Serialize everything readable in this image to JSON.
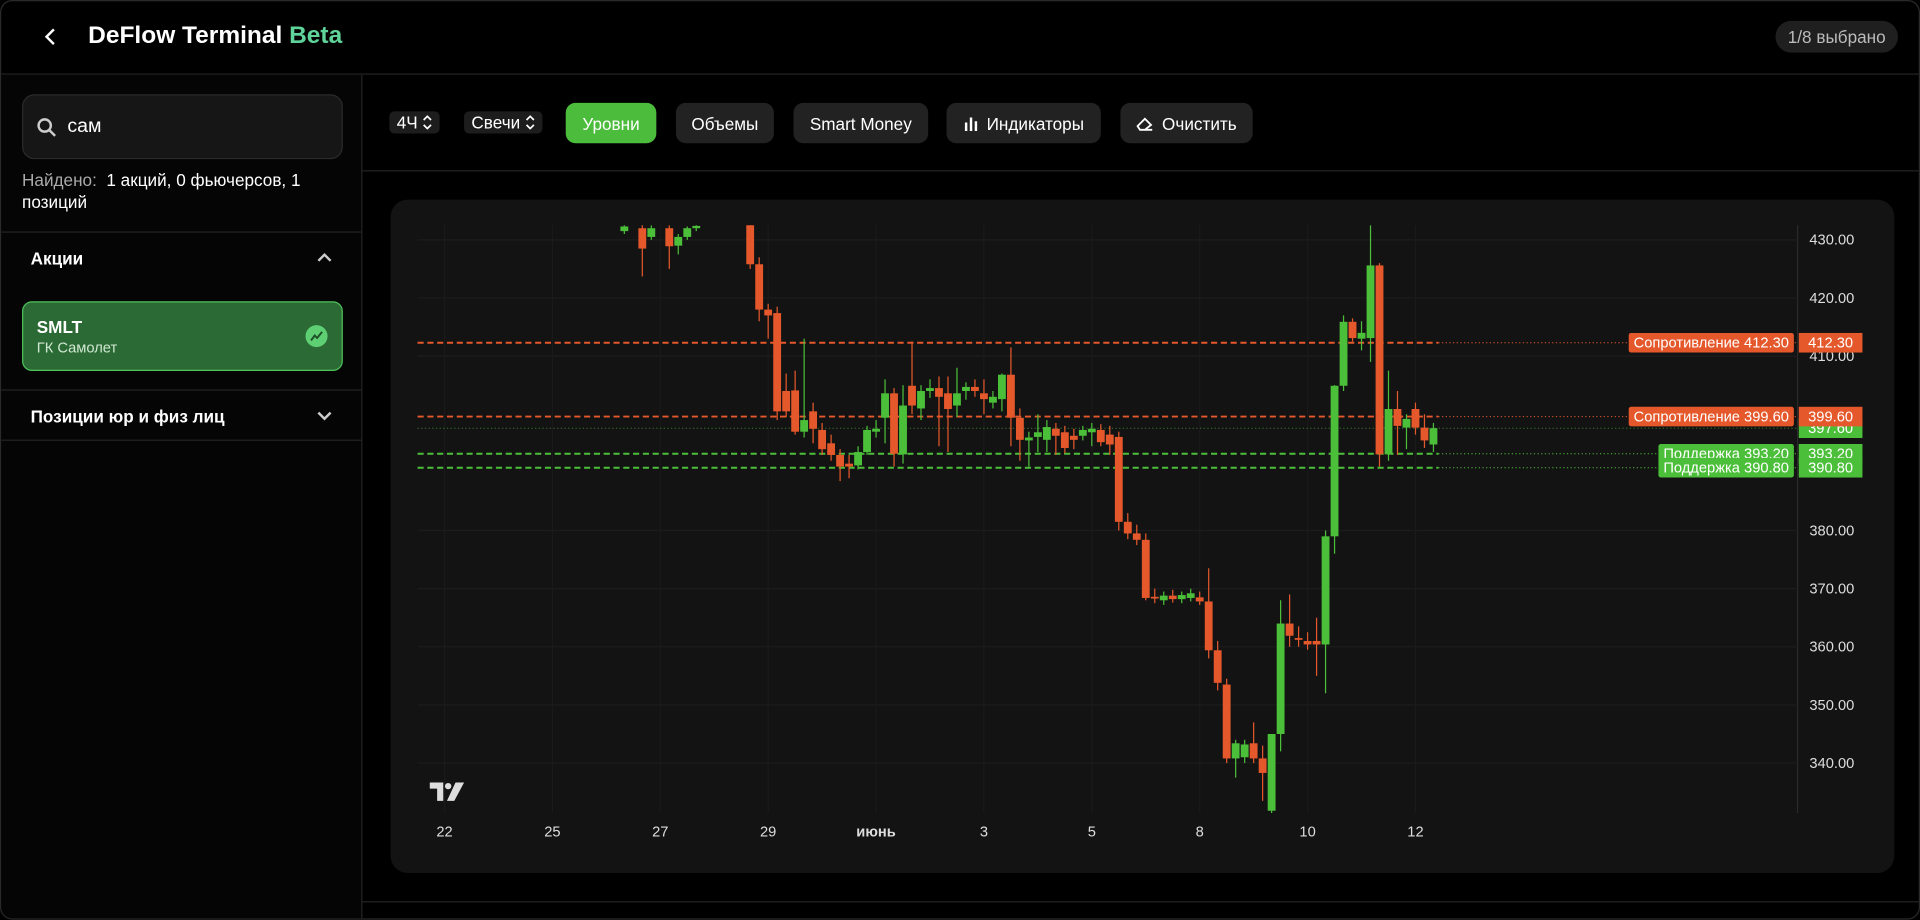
{
  "header": {
    "title": "DeFlow Terminal",
    "badge": "Beta",
    "selection": "1/8 выбрано"
  },
  "sidebar": {
    "search": "сам",
    "found_label": "Найдено:",
    "found_text": "1 акций, 0 фьючерсов, 1 позиций",
    "sections": [
      {
        "title": "Акции",
        "items": [
          {
            "ticker": "SMLT",
            "name": "ГК Самолет"
          }
        ]
      },
      {
        "title": "Позиции юр и физ лиц"
      }
    ]
  },
  "toolbar": {
    "timeframe": "4Ч",
    "chart_style": "Свечи",
    "buttons": [
      {
        "label": "Уровни",
        "active": true
      },
      {
        "label": "Объемы",
        "active": false
      },
      {
        "label": "Smart Money",
        "active": false
      },
      {
        "label": "Индикаторы",
        "active": false
      },
      {
        "label": "Очистить",
        "active": false
      }
    ]
  },
  "chart_data": {
    "type": "candlestick",
    "up_color": "#4cbf3a",
    "down_color": "#e5582b",
    "grid": true,
    "xlim": [
      -3,
      150.5
    ],
    "ylim": [
      331.4,
      432.5
    ],
    "xticks": [
      {
        "value": 0,
        "label": "22"
      },
      {
        "value": 12,
        "label": "25"
      },
      {
        "value": 24,
        "label": "27"
      },
      {
        "value": 36,
        "label": "29"
      },
      {
        "value": 48,
        "label": "июнь"
      },
      {
        "value": 60,
        "label": "3"
      },
      {
        "value": 72,
        "label": "5"
      },
      {
        "value": 84,
        "label": "8"
      },
      {
        "value": 96,
        "label": "10"
      },
      {
        "value": 108,
        "label": "12"
      }
    ],
    "yticks": [
      {
        "value": 430,
        "label": "430.00"
      },
      {
        "value": 420,
        "label": "420.00"
      },
      {
        "value": 410,
        "label": "410.00"
      },
      {
        "value": 380,
        "label": "380.00"
      },
      {
        "value": 370,
        "label": "370.00"
      },
      {
        "value": 360,
        "label": "360.00"
      },
      {
        "value": 350,
        "label": "350.00"
      },
      {
        "value": 340,
        "label": "340.00"
      }
    ],
    "x": [
      20,
      22,
      23,
      25,
      26,
      27,
      28,
      34,
      35,
      36,
      37,
      38,
      39,
      40,
      41,
      42,
      43,
      44,
      45,
      46,
      47,
      48,
      49,
      50,
      51,
      52,
      53,
      54,
      55,
      56,
      57,
      58,
      59,
      60,
      61,
      62,
      63,
      64,
      65,
      66,
      67,
      68,
      69,
      70,
      71,
      72,
      73,
      74,
      75,
      76,
      77,
      78,
      79,
      80,
      81,
      82,
      83,
      84,
      85,
      86,
      87,
      88,
      89,
      90,
      91,
      92,
      93,
      94,
      95,
      96,
      97,
      98,
      99,
      100,
      101,
      102,
      103,
      104,
      105,
      106,
      107,
      108,
      109,
      110
    ],
    "open": [
      431.5,
      432,
      430.5,
      432,
      429,
      430.5,
      432,
      433,
      425.8,
      418,
      417.4,
      404,
      404.1,
      397,
      400.5,
      397.3,
      395,
      393,
      391.5,
      391.2,
      393.5,
      397,
      399.4,
      403.6,
      393.1,
      404.9,
      401,
      404,
      404.5,
      403.6,
      401.5,
      404,
      404.7,
      403.6,
      402,
      402.6,
      406.8,
      399.4,
      395.5,
      396.1,
      395.6,
      397.5,
      396.9,
      396.3,
      396.3,
      396.9,
      397.3,
      396.5,
      396.1,
      381.5,
      379.5,
      378.4,
      368.6,
      368,
      368.8,
      368.2,
      368.4,
      368.5,
      367.8,
      359.4,
      353.5,
      340.8,
      341,
      343.4,
      340.8,
      331.8,
      345,
      364,
      361.5,
      361,
      361,
      360.4,
      379,
      404.9,
      415.9,
      413,
      413.1,
      425.6,
      393.1,
      400.9,
      397.7,
      400.9,
      397.7,
      394.8
    ],
    "high": [
      432.5,
      433,
      432.5,
      432.5,
      431,
      432.3,
      432.6,
      434,
      427,
      419,
      418.5,
      407,
      407.5,
      413,
      402,
      398.5,
      396.5,
      394,
      393,
      394.5,
      398,
      399,
      406,
      404.5,
      405,
      412.5,
      405,
      406,
      406.5,
      406.5,
      408,
      405.5,
      406,
      406,
      404,
      407,
      411.5,
      401,
      397,
      400,
      399,
      398.5,
      398,
      397.5,
      398,
      398.5,
      398.3,
      398,
      397,
      383,
      381,
      379.5,
      370,
      369.5,
      369.8,
      369.5,
      370,
      369.5,
      373.5,
      361,
      354.5,
      344,
      344,
      347,
      343,
      345,
      368,
      369,
      363.5,
      362.5,
      365,
      380,
      405,
      417,
      416.5,
      416,
      432.5,
      426,
      407.5,
      404,
      400,
      402,
      400,
      398.5
    ],
    "low": [
      431,
      423.7,
      430,
      425,
      427.5,
      430,
      431.5,
      425,
      416,
      413,
      399,
      399.5,
      396.5,
      396,
      395,
      393,
      392,
      388.5,
      389,
      390.5,
      393,
      396,
      395,
      391,
      391.5,
      400,
      399,
      402.8,
      394.5,
      393.5,
      399.5,
      402.5,
      403,
      400,
      401,
      400.5,
      394.5,
      392,
      391,
      393.5,
      393.5,
      393,
      393.3,
      394,
      395.5,
      394.5,
      394.5,
      393,
      380,
      378.5,
      377.5,
      368,
      367.5,
      367.2,
      367.6,
      367.5,
      367.8,
      367.2,
      358,
      352.5,
      340,
      337.5,
      340,
      340,
      333.5,
      331.4,
      342,
      360,
      360,
      359.5,
      355,
      352,
      376,
      404,
      412.5,
      411,
      409,
      391,
      392,
      393,
      394,
      396.5,
      394.2,
      393.5
    ],
    "close": [
      432.3,
      428.5,
      432,
      428.9,
      430.5,
      432,
      432.4,
      425.8,
      418,
      417,
      400.5,
      400.5,
      397,
      399,
      397.5,
      394,
      393,
      391,
      391,
      393.5,
      397.3,
      397.5,
      403.6,
      393.2,
      401.5,
      401.5,
      404,
      404.5,
      403,
      400.9,
      403.6,
      404.7,
      404,
      402.6,
      403,
      406.8,
      399.4,
      395.6,
      396,
      396.9,
      397.8,
      396.3,
      394.2,
      395.6,
      397.3,
      397.5,
      395.2,
      394.8,
      381.5,
      379.5,
      378.4,
      368.4,
      368.3,
      368.8,
      368.2,
      368.9,
      369.2,
      367.8,
      359.4,
      353.8,
      340.8,
      343.4,
      343.2,
      340.8,
      338.3,
      345,
      364,
      361.9,
      361.2,
      360.4,
      360.4,
      379,
      404.9,
      415.9,
      413.1,
      414,
      425.6,
      393.1,
      400.9,
      398,
      399.2,
      397.7,
      395.5,
      397.6
    ],
    "levels": [
      {
        "label": "Сопротивление 412.30",
        "value": 412.3,
        "value_label": "412.30",
        "color": "#e5582b"
      },
      {
        "label": "Сопротивление 399.60",
        "value": 399.6,
        "value_label": "399.60",
        "color": "#e5582b"
      },
      {
        "label": "Поддержка 393.20",
        "value": 393.2,
        "value_label": "393.20",
        "color": "#4cbf3a"
      },
      {
        "label": "Поддержка 390.80",
        "value": 390.8,
        "value_label": "390.80",
        "color": "#4cbf3a"
      }
    ],
    "last_price": {
      "value": 397.6,
      "label": "397.60",
      "color": "#4cbf3a"
    }
  }
}
